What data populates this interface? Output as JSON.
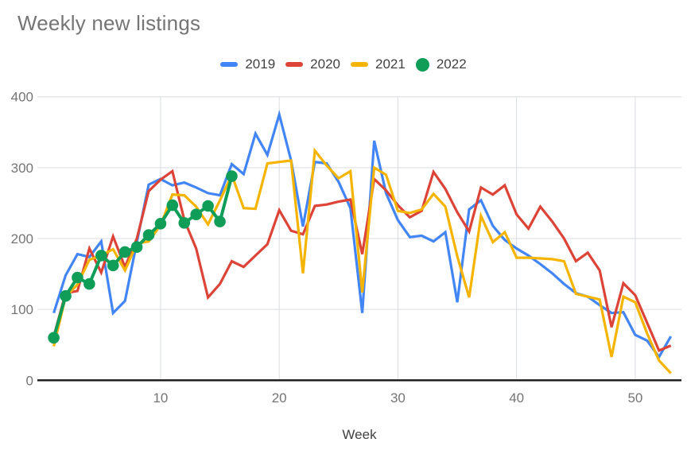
{
  "title": "Weekly new listings",
  "legend": [
    {
      "label": "2019",
      "color": "#4285F4",
      "marker": "dash"
    },
    {
      "label": "2020",
      "color": "#DB4437",
      "marker": "dash"
    },
    {
      "label": "2021",
      "color": "#F4B400",
      "marker": "dash"
    },
    {
      "label": "2022",
      "color": "#0F9D58",
      "marker": "circle"
    }
  ],
  "axes": {
    "xlabel": "Week",
    "x_ticks": [
      10,
      20,
      30,
      40,
      50
    ],
    "y_ticks": [
      0,
      100,
      200,
      300,
      400
    ],
    "x_range": [
      1,
      53
    ],
    "y_range": [
      0,
      400
    ]
  },
  "colors": {
    "blue": "#4285F4",
    "red": "#DB4437",
    "yellow": "#F4B400",
    "green": "#0F9D58",
    "grid": "#DADCE0",
    "baseline": "#212121",
    "tick_text": "#757575",
    "axis_label_text": "#424242",
    "title_text": "#757575",
    "background": "#FFFFFF"
  },
  "chart_data": {
    "type": "line",
    "title": "Weekly new listings",
    "xlabel": "Week",
    "ylabel": "",
    "x_start_week": 1,
    "grid": true,
    "legend_position": "top",
    "ylim": [
      0,
      400
    ],
    "series": [
      {
        "name": "2019",
        "color": "#4285F4",
        "marker": "none",
        "values": [
          95,
          148,
          178,
          174,
          196,
          95,
          112,
          195,
          276,
          284,
          275,
          279,
          272,
          264,
          261,
          305,
          291,
          348,
          318,
          375,
          310,
          217,
          308,
          306,
          280,
          243,
          95,
          338,
          264,
          226,
          202,
          204,
          196,
          209,
          110,
          241,
          254,
          218,
          198,
          186,
          176,
          164,
          151,
          136,
          123,
          118,
          106,
          95,
          96,
          64,
          56,
          33,
          62
        ]
      },
      {
        "name": "2020",
        "color": "#DB4437",
        "marker": "none",
        "values": [
          62,
          123,
          126,
          186,
          152,
          203,
          160,
          200,
          267,
          283,
          295,
          226,
          186,
          117,
          136,
          168,
          160,
          176,
          192,
          240,
          211,
          206,
          246,
          248,
          252,
          255,
          178,
          284,
          268,
          247,
          230,
          239,
          294,
          270,
          237,
          210,
          272,
          262,
          275,
          234,
          214,
          245,
          224,
          200,
          168,
          180,
          155,
          75,
          137,
          120,
          81,
          42,
          49
        ]
      },
      {
        "name": "2021",
        "color": "#F4B400",
        "marker": "none",
        "values": [
          48,
          118,
          135,
          170,
          176,
          185,
          155,
          193,
          196,
          219,
          262,
          261,
          245,
          220,
          254,
          290,
          243,
          242,
          306,
          308,
          310,
          151,
          324,
          303,
          285,
          295,
          124,
          300,
          290,
          239,
          236,
          241,
          263,
          245,
          175,
          117,
          232,
          195,
          209,
          173,
          173,
          172,
          171,
          168,
          122,
          118,
          114,
          33,
          118,
          110,
          66,
          28,
          10
        ]
      },
      {
        "name": "2022",
        "color": "#0F9D58",
        "marker": "circle",
        "values": [
          60,
          119,
          145,
          136,
          176,
          162,
          181,
          188,
          205,
          221,
          247,
          222,
          234,
          246,
          224,
          288
        ]
      }
    ]
  }
}
